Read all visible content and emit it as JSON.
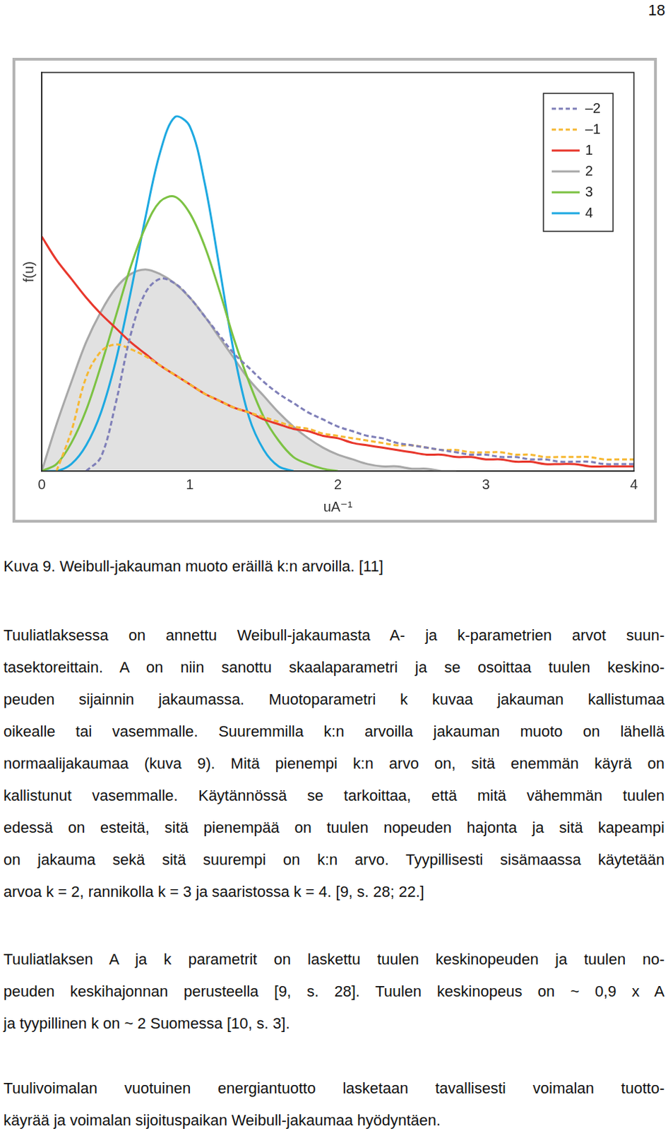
{
  "page_number": "18",
  "chart_data": {
    "type": "line",
    "x_label": "uA⁻¹",
    "y_label": "f(u)",
    "x": [
      0,
      0.1,
      0.2,
      0.3,
      0.4,
      0.5,
      0.6,
      0.7,
      0.8,
      0.9,
      1,
      1.1,
      1.2,
      1.3,
      1.4,
      1.5,
      1.6,
      1.7,
      1.8,
      1.9,
      2,
      2.1,
      2.2,
      2.3,
      2.4,
      2.5,
      2.6,
      2.7,
      2.8,
      2.9,
      3,
      3.1,
      3.2,
      3.3,
      3.4,
      3.5,
      3.6,
      3.7,
      3.8,
      3.9,
      4
    ],
    "xlim": [
      0,
      4
    ],
    "xticks": [
      0,
      1,
      2,
      3,
      4
    ],
    "ylim": [
      0,
      1.7
    ],
    "tick_labels": "x",
    "grid": false,
    "legend": "upper right",
    "series": [
      {
        "name": "–2",
        "color": "#7f7fb8",
        "line_style": "dashed",
        "values": [
          null,
          null,
          null,
          0,
          0.06,
          0.29,
          0.58,
          0.76,
          0.82,
          0.8,
          0.74,
          0.66,
          0.58,
          0.5,
          0.44,
          0.38,
          0.33,
          0.29,
          0.25,
          0.22,
          0.19,
          0.17,
          0.15,
          0.14,
          0.12,
          0.11,
          0.1,
          0.09,
          0.08,
          0.07,
          0.07,
          0.06,
          0.06,
          0.05,
          0.05,
          0.04,
          0.04,
          0.04,
          0.03,
          0.03,
          0.03
        ]
      },
      {
        "name": "–1",
        "color": "#f6b833",
        "line_style": "dashed",
        "values": [
          null,
          0,
          0.17,
          0.4,
          0.51,
          0.54,
          0.52,
          0.49,
          0.45,
          0.41,
          0.37,
          0.33,
          0.3,
          0.27,
          0.25,
          0.23,
          0.21,
          0.19,
          0.18,
          0.16,
          0.15,
          0.14,
          0.13,
          0.12,
          0.11,
          0.11,
          0.1,
          0.09,
          0.09,
          0.08,
          0.08,
          0.08,
          0.07,
          0.07,
          0.06,
          0.06,
          0.06,
          0.06,
          0.05,
          0.05,
          0.05
        ]
      },
      {
        "name": "1",
        "color": "#e8372c",
        "line_style": "solid",
        "values": [
          1,
          0.9,
          0.82,
          0.74,
          0.67,
          0.61,
          0.55,
          0.5,
          0.45,
          0.41,
          0.37,
          0.33,
          0.3,
          0.27,
          0.25,
          0.22,
          0.2,
          0.18,
          0.17,
          0.15,
          0.14,
          0.12,
          0.11,
          0.1,
          0.09,
          0.08,
          0.07,
          0.07,
          0.06,
          0.06,
          0.05,
          0.05,
          0.04,
          0.04,
          0.03,
          0.03,
          0.03,
          0.02,
          0.02,
          0.02,
          0.02
        ]
      },
      {
        "name": "2",
        "color": "#a8a8a8",
        "line_style": "solid",
        "type": "area",
        "values": [
          0,
          0.2,
          0.38,
          0.55,
          0.68,
          0.78,
          0.84,
          0.86,
          0.84,
          0.8,
          0.74,
          0.66,
          0.57,
          0.48,
          0.39,
          0.32,
          0.25,
          0.19,
          0.14,
          0.1,
          0.07,
          0.05,
          0.03,
          0.02,
          0.02,
          0.01,
          0.01,
          0.0,
          0.0,
          null,
          null,
          null,
          null,
          null,
          null,
          null,
          null,
          null,
          null,
          null,
          null
        ]
      },
      {
        "name": "3",
        "color": "#7cc243",
        "line_style": "solid",
        "values": [
          0,
          0.03,
          0.12,
          0.26,
          0.45,
          0.66,
          0.87,
          1.04,
          1.15,
          1.17,
          1.1,
          0.96,
          0.77,
          0.56,
          0.38,
          0.23,
          0.13,
          0.06,
          0.03,
          0.01,
          0.0,
          null,
          null,
          null,
          null,
          null,
          null,
          null,
          null,
          null,
          null,
          null,
          null,
          null,
          null,
          null,
          null,
          null,
          null,
          null,
          null
        ]
      },
      {
        "name": "4",
        "color": "#1ea9e1",
        "line_style": "solid",
        "values": [
          0,
          0.0,
          0.03,
          0.11,
          0.25,
          0.47,
          0.76,
          1.08,
          1.36,
          1.51,
          1.47,
          1.23,
          0.87,
          0.5,
          0.23,
          0.09,
          0.02,
          0.0,
          null,
          null,
          null,
          null,
          null,
          null,
          null,
          null,
          null,
          null,
          null,
          null,
          null,
          null,
          null,
          null,
          null,
          null,
          null,
          null,
          null,
          null,
          null
        ]
      }
    ]
  },
  "caption": "Kuva 9. Weibull-jakauman muoto eräillä k:n arvoilla. [11]",
  "paragraphs": [
    [
      "Tuuliatlaksessa on annettu Weibull-jakaumasta A- ja k-parametrien arvot suun-",
      "tasektoreittain. A on niin sanottu skaalaparametri ja se osoittaa tuulen keskino-",
      "peuden sijainnin jakaumassa. Muotoparametri k kuvaa jakauman kallistumaa",
      "oikealle tai vasemmalle. Suuremmilla k:n arvoilla jakauman muoto on lähellä",
      "normaalijakaumaa (kuva 9). Mitä pienempi k:n arvo on, sitä enemmän käyrä on",
      "kallistunut vasemmalle. Käytännössä se tarkoittaa, että mitä vähemmän tuulen",
      "edessä on esteitä, sitä pienempää on tuulen nopeuden hajonta ja sitä kapeampi",
      "on jakauma sekä sitä suurempi on k:n arvo. Tyypillisesti sisämaassa käytetään",
      "arvoa k = 2, rannikolla k = 3 ja saaristossa k = 4. [9, s. 28; 22.]"
    ],
    [
      "Tuuliatlaksen A ja k parametrit on laskettu tuulen keskinopeuden ja tuulen no-",
      "peuden keskihajonnan perusteella [9, s. 28]. Tuulen keskinopeus on ~ 0,9 x A",
      "ja tyypillinen k on ~ 2 Suomessa [10, s. 3]."
    ],
    [
      "Tuulivoimalan vuotuinen energiantuotto lasketaan tavallisesti voimalan tuotto-",
      "käyrää ja voimalan sijoituspaikan Weibull-jakaumaa hyödyntäen."
    ]
  ]
}
